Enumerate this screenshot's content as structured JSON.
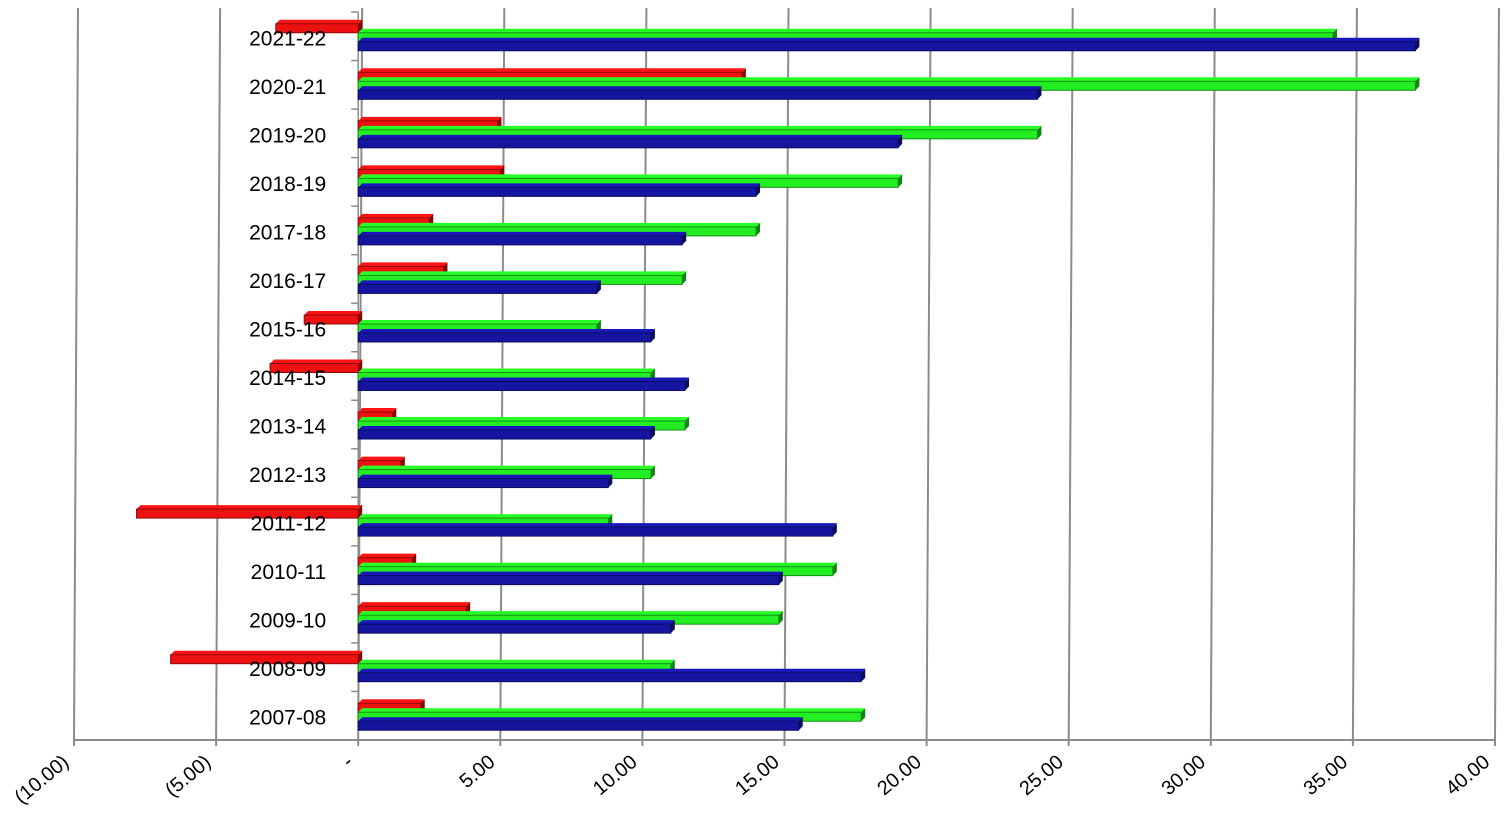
{
  "chart_data": {
    "type": "bar",
    "orientation": "horizontal",
    "style": "3d-clustered",
    "categories": [
      "2007-08",
      "2008-09",
      "2009-10",
      "2010-11",
      "2011-12",
      "2012-13",
      "2013-14",
      "2014-15",
      "2015-16",
      "2016-17",
      "2017-18",
      "2018-19",
      "2019-20",
      "2020-21",
      "2021-22"
    ],
    "series": [
      {
        "color": "#1515a0",
        "values": [
          15.5,
          17.7,
          11.0,
          14.8,
          16.7,
          8.8,
          10.3,
          11.5,
          10.3,
          8.4,
          11.4,
          14.0,
          19.0,
          23.9,
          37.2
        ]
      },
      {
        "color": "#22ee22",
        "values": [
          17.7,
          11.0,
          14.8,
          16.7,
          8.8,
          10.3,
          11.5,
          10.3,
          8.4,
          11.4,
          14.0,
          19.0,
          23.9,
          37.2,
          34.3
        ]
      },
      {
        "color": "#ee1111",
        "values": [
          2.2,
          -6.6,
          3.8,
          1.9,
          -7.8,
          1.5,
          1.2,
          -3.1,
          -1.9,
          3.0,
          2.5,
          5.0,
          4.9,
          13.5,
          -2.9
        ]
      }
    ],
    "xlim": [
      -10,
      40
    ],
    "xticks": [
      -10,
      -5,
      0,
      5,
      10,
      15,
      20,
      25,
      30,
      35,
      40
    ],
    "xtick_labels": [
      "(10.00)",
      "(5.00)",
      "-",
      "5.00",
      "10.00",
      "15.00",
      "20.00",
      "25.00",
      "30.00",
      "35.00",
      "40.00"
    ],
    "grid": true,
    "legend": "none",
    "title": "",
    "xlabel": "",
    "ylabel": ""
  }
}
